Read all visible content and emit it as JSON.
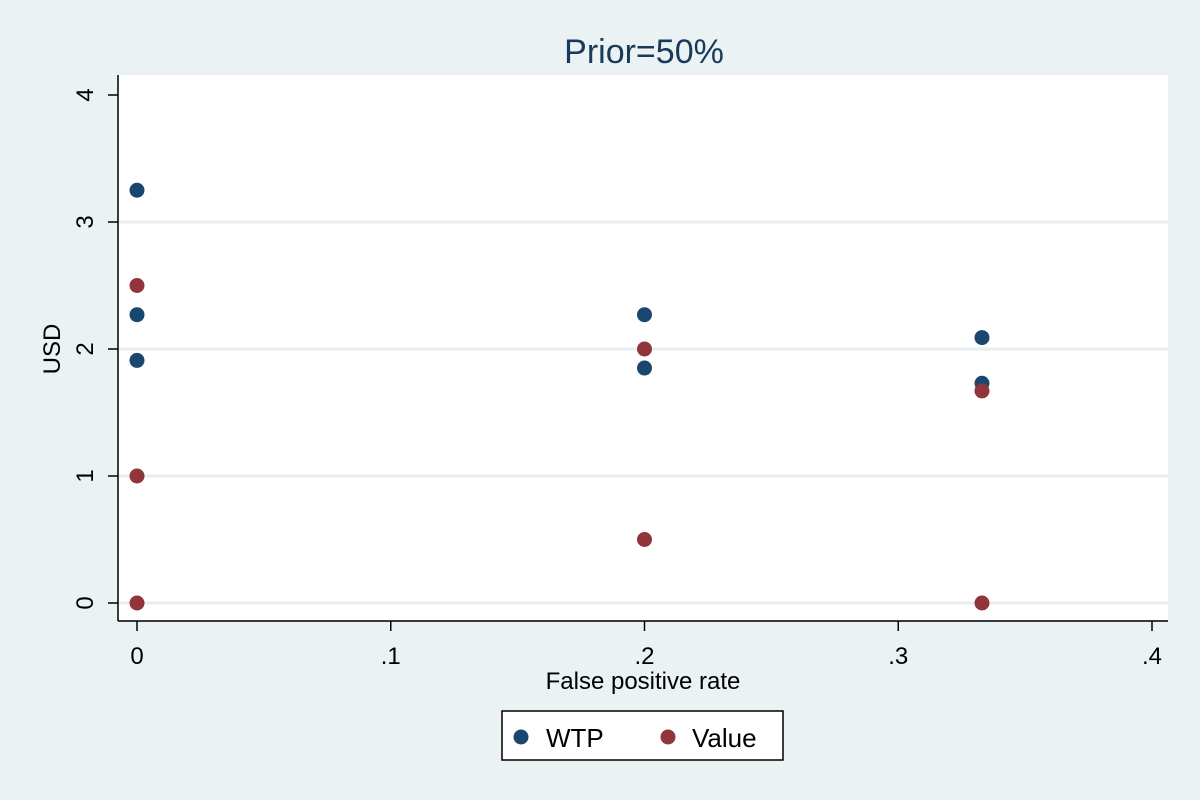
{
  "chart_data": {
    "type": "scatter",
    "title": "Prior=50%",
    "xlabel": "False positive rate",
    "ylabel": "USD",
    "xlim": [
      0,
      0.4
    ],
    "ylim": [
      0,
      4
    ],
    "x_ticks": [
      {
        "value": 0,
        "label": "0"
      },
      {
        "value": 0.1,
        "label": ".1"
      },
      {
        "value": 0.2,
        "label": ".2"
      },
      {
        "value": 0.3,
        "label": ".3"
      },
      {
        "value": 0.4,
        "label": ".4"
      }
    ],
    "y_ticks": [
      {
        "value": 0,
        "label": "0"
      },
      {
        "value": 1,
        "label": "1"
      },
      {
        "value": 2,
        "label": "2"
      },
      {
        "value": 3,
        "label": "3"
      },
      {
        "value": 4,
        "label": "4"
      }
    ],
    "grid": "horizontal",
    "legend_position": "bottom",
    "series": [
      {
        "name": "WTP",
        "color": "#1a476f",
        "points": [
          {
            "x": 0,
            "y": 3.25
          },
          {
            "x": 0,
            "y": 2.27
          },
          {
            "x": 0,
            "y": 1.91
          },
          {
            "x": 0.2,
            "y": 2.27
          },
          {
            "x": 0.2,
            "y": 1.85
          },
          {
            "x": 0.333,
            "y": 2.09
          },
          {
            "x": 0.333,
            "y": 1.73
          }
        ]
      },
      {
        "name": "Value",
        "color": "#90353b",
        "points": [
          {
            "x": 0,
            "y": 2.5
          },
          {
            "x": 0,
            "y": 1
          },
          {
            "x": 0,
            "y": 0
          },
          {
            "x": 0.2,
            "y": 2
          },
          {
            "x": 0.2,
            "y": 0.5
          },
          {
            "x": 0.333,
            "y": 1.67
          },
          {
            "x": 0.333,
            "y": 0
          }
        ]
      }
    ]
  }
}
